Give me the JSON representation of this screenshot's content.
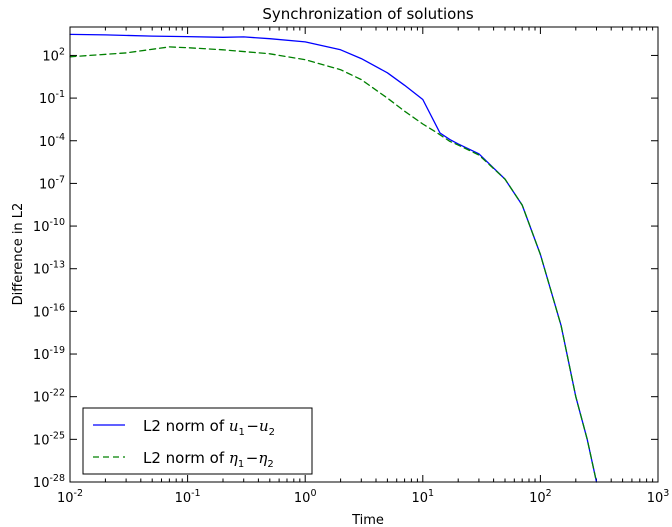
{
  "chart_data": {
    "type": "line",
    "title": "Synchronization of solutions",
    "xlabel": "Time",
    "ylabel": "Difference in L2",
    "xscale": "log",
    "yscale": "log",
    "xlim": [
      0.01,
      1000
    ],
    "ylim": [
      1e-28,
      10000
    ],
    "grid": false,
    "legend_placement": "lower-left",
    "x_ticks": [
      {
        "base": "10",
        "exp": "-2"
      },
      {
        "base": "10",
        "exp": "-1"
      },
      {
        "base": "10",
        "exp": "0"
      },
      {
        "base": "10",
        "exp": "1"
      },
      {
        "base": "10",
        "exp": "2"
      },
      {
        "base": "10",
        "exp": "3"
      }
    ],
    "y_ticks": [
      {
        "base": "10",
        "exp": "2"
      },
      {
        "base": "10",
        "exp": "-1"
      },
      {
        "base": "10",
        "exp": "-4"
      },
      {
        "base": "10",
        "exp": "-7"
      },
      {
        "base": "10",
        "exp": "-10"
      },
      {
        "base": "10",
        "exp": "-13"
      },
      {
        "base": "10",
        "exp": "-16"
      },
      {
        "base": "10",
        "exp": "-19"
      },
      {
        "base": "10",
        "exp": "-22"
      },
      {
        "base": "10",
        "exp": "-25"
      },
      {
        "base": "10",
        "exp": "-28"
      }
    ],
    "series": [
      {
        "name": "L2 norm of u1−u2",
        "legend_prefix": "L2 norm of ",
        "legend_math": [
          {
            "v": "u",
            "s": "1"
          },
          {
            "op": "−"
          },
          {
            "v": "u",
            "s": "2"
          }
        ],
        "color": "#0000ff",
        "dash": "solid",
        "x": [
          0.01,
          0.02,
          0.05,
          0.1,
          0.2,
          0.3,
          0.5,
          1,
          2,
          3,
          5,
          7,
          10,
          14,
          17,
          20,
          30,
          50,
          70,
          100,
          150,
          200,
          250,
          300
        ],
        "y": [
          3000,
          2800,
          2300,
          2100,
          1900,
          2000,
          1500,
          900,
          250,
          60,
          6,
          0.8,
          0.08,
          0.00035,
          0.00012,
          6e-05,
          1.2e-05,
          2e-07,
          3e-09,
          1e-12,
          1e-17,
          1e-22,
          1e-25,
          1e-28
        ]
      },
      {
        "name": "L2 norm of η1−η2",
        "legend_prefix": "L2 norm of ",
        "legend_math": [
          {
            "v": "η",
            "s": "1"
          },
          {
            "op": "−"
          },
          {
            "v": "η",
            "s": "2"
          }
        ],
        "color": "#008000",
        "dash": "dashed",
        "x": [
          0.01,
          0.03,
          0.07,
          0.1,
          0.2,
          0.5,
          1,
          2,
          3,
          5,
          7,
          10,
          13,
          17,
          20,
          30,
          50,
          70,
          100,
          150,
          200,
          250,
          300
        ],
        "y": [
          80,
          150,
          400,
          350,
          250,
          130,
          50,
          10,
          2,
          0.1,
          0.012,
          0.0015,
          0.0004,
          9e-05,
          5e-05,
          1e-05,
          2e-07,
          3e-09,
          1e-12,
          1e-17,
          1e-22,
          1e-25,
          1e-28
        ]
      }
    ]
  }
}
